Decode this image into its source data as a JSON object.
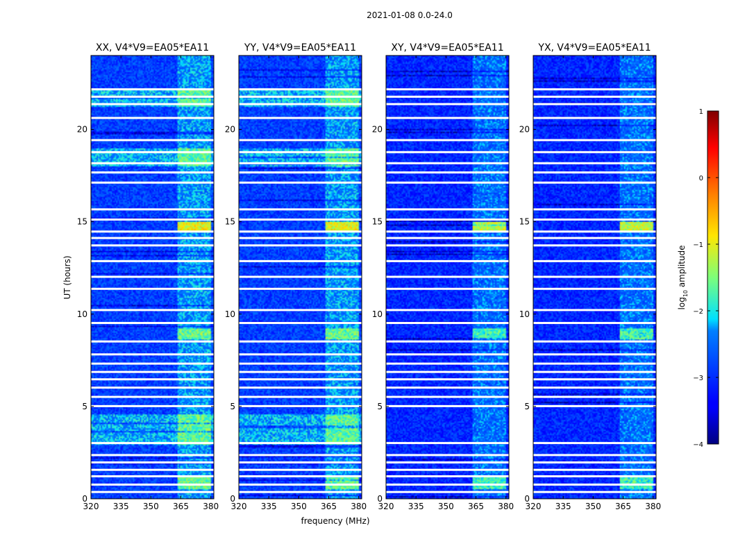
{
  "chart_data": {
    "type": "heatmap",
    "suptitle": "2021-01-08 0.0-24.0",
    "xlabel": "frequency (MHz)",
    "ylabel": "UT (hours)",
    "xlim": [
      320,
      381.5
    ],
    "ylim": [
      0,
      24
    ],
    "x_ticks": [
      "320",
      "335",
      "350",
      "365",
      "380"
    ],
    "x_tick_values": [
      320,
      335,
      350,
      365,
      380
    ],
    "y_ticks": [
      "0",
      "5",
      "10",
      "15",
      "20"
    ],
    "y_tick_values": [
      0,
      5,
      10,
      15,
      20
    ],
    "colorbar": {
      "label_prefix": "log",
      "label_sub": "10",
      "label_suffix": " amplitude",
      "min": -4,
      "max": 1,
      "ticks": [
        "1",
        "0",
        "−1",
        "−2",
        "−3",
        "−4"
      ],
      "tick_values": [
        1,
        0,
        -1,
        -2,
        -3,
        -4
      ],
      "colormap": "jet"
    },
    "panels": [
      {
        "title": "XX, V4*V9=EA05*EA11",
        "pol": "XX"
      },
      {
        "title": "YY, V4*V9=EA05*EA11",
        "pol": "YY"
      },
      {
        "title": "XY, V4*V9=EA05*EA11",
        "pol": "XY"
      },
      {
        "title": "YX, V4*V9=EA05*EA11",
        "pol": "YX"
      }
    ],
    "flagged_ut_hours": [
      0.35,
      0.75,
      1.2,
      1.55,
      1.95,
      2.35,
      3.0,
      5.0,
      5.5,
      6.0,
      6.45,
      6.85,
      7.3,
      7.8,
      8.5,
      9.5,
      10.2,
      11.35,
      12.0,
      12.85,
      13.7,
      14.1,
      14.45,
      15.1,
      15.65,
      17.1,
      17.65,
      18.15,
      18.75,
      19.4,
      20.6,
      21.35,
      21.75,
      22.15
    ]
  }
}
